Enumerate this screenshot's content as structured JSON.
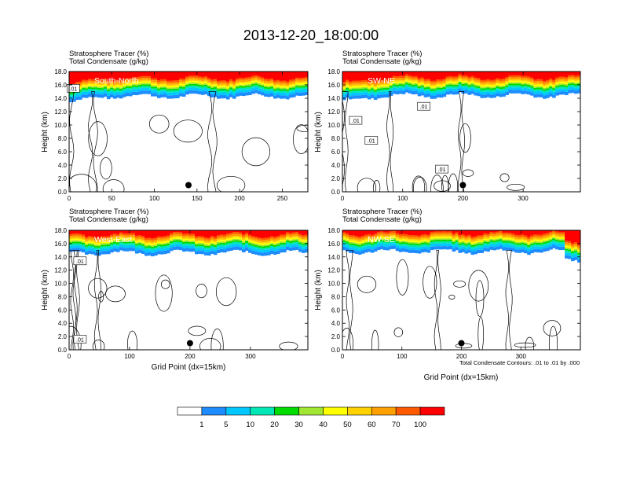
{
  "chart_data": {
    "type": "heatmap",
    "title": "2013-12-20_18:00:00",
    "ylabel": "Height (km)",
    "ylim": [
      0,
      18
    ],
    "yticks": [
      "0.0",
      "2.0",
      "4.0",
      "6.0",
      "8.0",
      "10.0",
      "12.0",
      "14.0",
      "16.0",
      "18.0"
    ],
    "xlabel": "Grid Point (dx=15km)",
    "panels": [
      {
        "name": "South-North",
        "label": "South-North",
        "subtitle_line1": "Stratosphere Tracer   (%)",
        "subtitle_line2": "Total Condensate   (g/kg)",
        "xlim": [
          0,
          280
        ],
        "xticks": [
          0,
          50,
          100,
          150,
          200,
          250
        ],
        "marker": {
          "x": 140,
          "y": 1.0
        },
        "contour_labels": [
          {
            "text": ".01",
            "x": 5,
            "y": 15.5
          }
        ],
        "show_xlabel": false
      },
      {
        "name": "SW-NE",
        "label": "SW-NE",
        "subtitle_line1": "Stratosphere Tracer   (%)",
        "subtitle_line2": "Total Condensate   (g/kg)",
        "xlim": [
          0,
          395
        ],
        "xticks": [
          0,
          100,
          200,
          300
        ],
        "marker": {
          "x": 200,
          "y": 1.0
        },
        "contour_labels": [
          {
            "text": ".01",
            "x": 135,
            "y": 12.8
          },
          {
            "text": ".01",
            "x": 22,
            "y": 10.7
          },
          {
            "text": ".01",
            "x": 48,
            "y": 7.7
          },
          {
            "text": ".01",
            "x": 165,
            "y": 3.4
          }
        ],
        "show_xlabel": false
      },
      {
        "name": "West-East",
        "label": "West-East",
        "subtitle_line1": "Stratosphere Tracer   (%)",
        "subtitle_line2": "Total Condensate   (g/kg)",
        "xlim": [
          0,
          395
        ],
        "xticks": [
          0,
          100,
          200,
          300
        ],
        "marker": {
          "x": 200,
          "y": 1.0
        },
        "contour_labels": [
          {
            "text": ".01",
            "x": 18,
            "y": 13.4
          },
          {
            "text": ".01",
            "x": 18,
            "y": 1.6
          }
        ],
        "show_xlabel": true
      },
      {
        "name": "NW-SE",
        "label": "NW-SE",
        "subtitle_line1": "Stratosphere Tracer   (%)",
        "subtitle_line2": "Total Condensate   (g/kg)",
        "xlim": [
          0,
          400
        ],
        "xticks": [
          0,
          100,
          200,
          300
        ],
        "marker": {
          "x": 200,
          "y": 1.0
        },
        "contour_labels": [],
        "show_xlabel": true,
        "contour_note": "Total Condensate Contours: .01 to .01 by .000"
      }
    ],
    "colorbar": {
      "levels": [
        "1",
        "5",
        "10",
        "20",
        "30",
        "40",
        "50",
        "60",
        "70",
        "100"
      ],
      "colors": [
        "#ffffff",
        "#1e8cff",
        "#00c8ff",
        "#00e6b4",
        "#00dc00",
        "#a0e632",
        "#ffff00",
        "#ffd200",
        "#ffa000",
        "#ff5a00",
        "#ff0000"
      ]
    }
  }
}
